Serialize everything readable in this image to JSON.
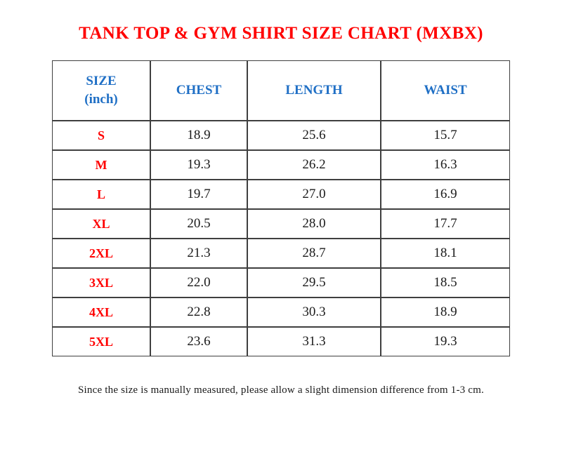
{
  "page": {
    "title": "TANK TOP & GYM SHIRT SIZE CHART (MXBX)",
    "note": "Since the size is manually measured, please allow a slight dimension difference from 1-3 cm."
  },
  "colors": {
    "title_red": "#FF0000",
    "header_blue": "#1F6FC5",
    "size_label_red": "#FF0000",
    "value_text": "#1A1A1A",
    "table_border": "#3F3F3F",
    "background": "#FFFFFF"
  },
  "table": {
    "headers": {
      "size_line1": "SIZE",
      "size_line2": "(inch)",
      "chest": "CHEST",
      "length": "LENGTH",
      "waist": "WAIST"
    },
    "rows": [
      {
        "size": "S",
        "chest": "18.9",
        "length": "25.6",
        "waist": "15.7"
      },
      {
        "size": "M",
        "chest": "19.3",
        "length": "26.2",
        "waist": "16.3"
      },
      {
        "size": "L",
        "chest": "19.7",
        "length": "27.0",
        "waist": "16.9"
      },
      {
        "size": "XL",
        "chest": "20.5",
        "length": "28.0",
        "waist": "17.7"
      },
      {
        "size": "2XL",
        "chest": "21.3",
        "length": "28.7",
        "waist": "18.1"
      },
      {
        "size": "3XL",
        "chest": "22.0",
        "length": "29.5",
        "waist": "18.5"
      },
      {
        "size": "4XL",
        "chest": "22.8",
        "length": "30.3",
        "waist": "18.9"
      },
      {
        "size": "5XL",
        "chest": "23.6",
        "length": "31.3",
        "waist": "19.3"
      }
    ]
  },
  "chart_data": {
    "type": "table",
    "title": "TANK TOP & GYM SHIRT SIZE CHART (MXBX)",
    "unit": "inch",
    "columns": [
      "SIZE (inch)",
      "CHEST",
      "LENGTH",
      "WAIST"
    ],
    "sizes": [
      "S",
      "M",
      "L",
      "XL",
      "2XL",
      "3XL",
      "4XL",
      "5XL"
    ],
    "series": [
      {
        "name": "CHEST",
        "values": [
          18.9,
          19.3,
          19.7,
          20.5,
          21.3,
          22.0,
          22.8,
          23.6
        ]
      },
      {
        "name": "LENGTH",
        "values": [
          25.6,
          26.2,
          27.0,
          28.0,
          28.7,
          29.5,
          30.3,
          31.3
        ]
      },
      {
        "name": "WAIST",
        "values": [
          15.7,
          16.3,
          16.9,
          17.7,
          18.1,
          18.5,
          18.9,
          19.3
        ]
      }
    ]
  }
}
